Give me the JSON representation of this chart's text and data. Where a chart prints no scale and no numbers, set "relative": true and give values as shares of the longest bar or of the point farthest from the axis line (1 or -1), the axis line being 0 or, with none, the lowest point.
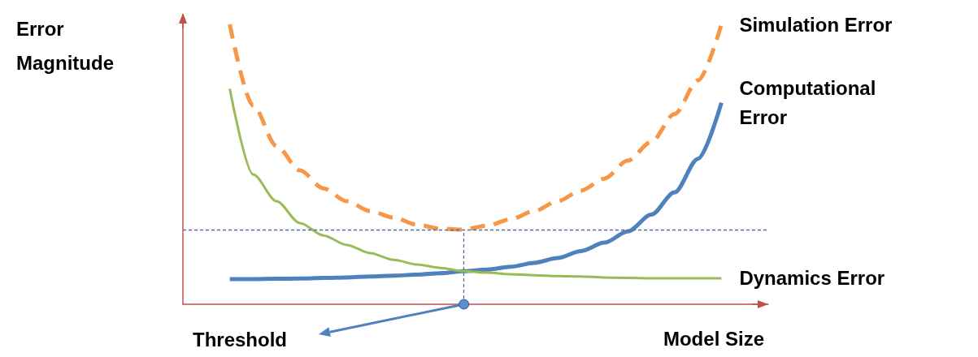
{
  "chart_data": {
    "type": "line",
    "relative": true,
    "xlabel": "Model Size",
    "ylabel": "Error Magnitude",
    "legend": false,
    "grid": false,
    "categories": [
      null,
      null,
      null,
      null,
      null,
      null,
      null,
      null,
      null,
      null,
      null,
      null,
      null,
      null,
      null,
      null,
      null,
      null,
      null,
      null,
      null,
      null,
      null,
      null,
      null,
      null
    ],
    "series": [
      {
        "name": "Simulation Error",
        "color": "#f79646",
        "line_style": "dashed",
        "values": [
          null,
          null,
          1.0,
          0.71,
          0.565,
          0.478,
          0.414,
          0.368,
          0.333,
          0.31,
          0.284,
          0.27,
          0.267,
          0.281,
          0.304,
          0.333,
          0.368,
          0.406,
          0.449,
          0.513,
          0.58,
          0.68,
          0.8,
          1.0,
          null,
          null
        ]
      },
      {
        "name": "Computational Error",
        "color": "#4f81bd",
        "line_style": "solid",
        "values": [
          null,
          null,
          0.09,
          0.09,
          0.091,
          0.092,
          0.094,
          0.096,
          0.099,
          0.102,
          0.106,
          0.111,
          0.118,
          0.124,
          0.134,
          0.148,
          0.165,
          0.19,
          0.22,
          0.26,
          0.32,
          0.4,
          0.52,
          0.72,
          null,
          null
        ]
      },
      {
        "name": "Dynamics Error",
        "color": "#9bbb59",
        "line_style": "solid",
        "values": [
          null,
          null,
          0.77,
          0.464,
          0.368,
          0.29,
          0.246,
          0.212,
          0.183,
          0.159,
          0.142,
          0.13,
          0.118,
          0.113,
          0.107,
          0.104,
          0.101,
          0.099,
          0.096,
          0.094,
          0.093,
          0.093,
          0.093,
          0.093,
          null,
          null
        ]
      }
    ],
    "ref_lines": [
      {
        "axis": "y",
        "value": 0.267,
        "color": "#4f6f9f",
        "line_style": "dashed"
      }
    ],
    "annotations": [
      "Threshold"
    ]
  }
}
